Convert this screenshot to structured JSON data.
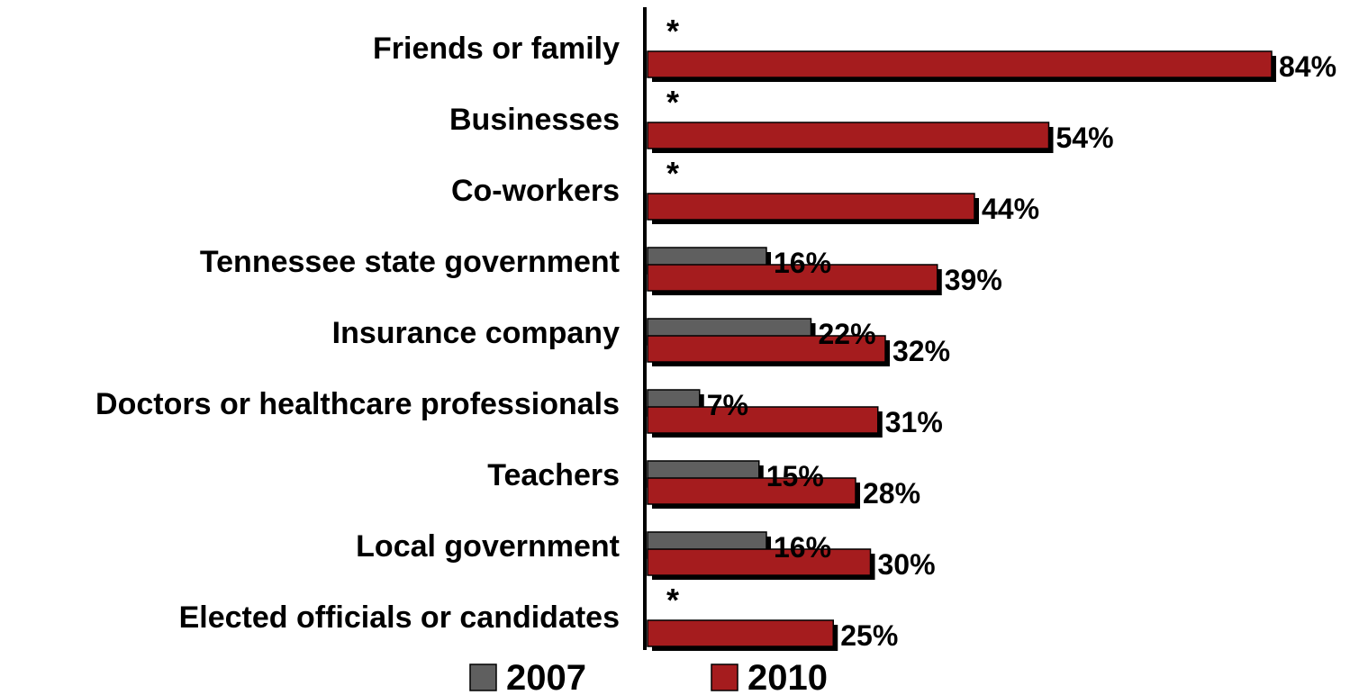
{
  "chart_data": {
    "type": "bar",
    "orientation": "horizontal",
    "categories": [
      "Friends or family",
      "Businesses",
      "Co-workers",
      "Tennessee state government",
      "Insurance company",
      "Doctors or healthcare professionals",
      "Teachers",
      "Local government",
      "Elected officials or candidates"
    ],
    "series": [
      {
        "name": "2007",
        "color": "#5f5f5f",
        "values": [
          null,
          null,
          null,
          16,
          22,
          7,
          15,
          16,
          null
        ],
        "labels": [
          "*",
          "*",
          "*",
          "16%",
          "22%",
          "7%",
          "15%",
          "16%",
          "*"
        ]
      },
      {
        "name": "2010",
        "color": "#a51c1e",
        "values": [
          84,
          54,
          44,
          39,
          32,
          31,
          28,
          30,
          25
        ],
        "labels": [
          "84%",
          "54%",
          "44%",
          "39%",
          "32%",
          "31%",
          "28%",
          "30%",
          "25%"
        ]
      }
    ],
    "xlim": [
      0,
      84
    ],
    "grid": false,
    "legend_placement": "bottom"
  }
}
